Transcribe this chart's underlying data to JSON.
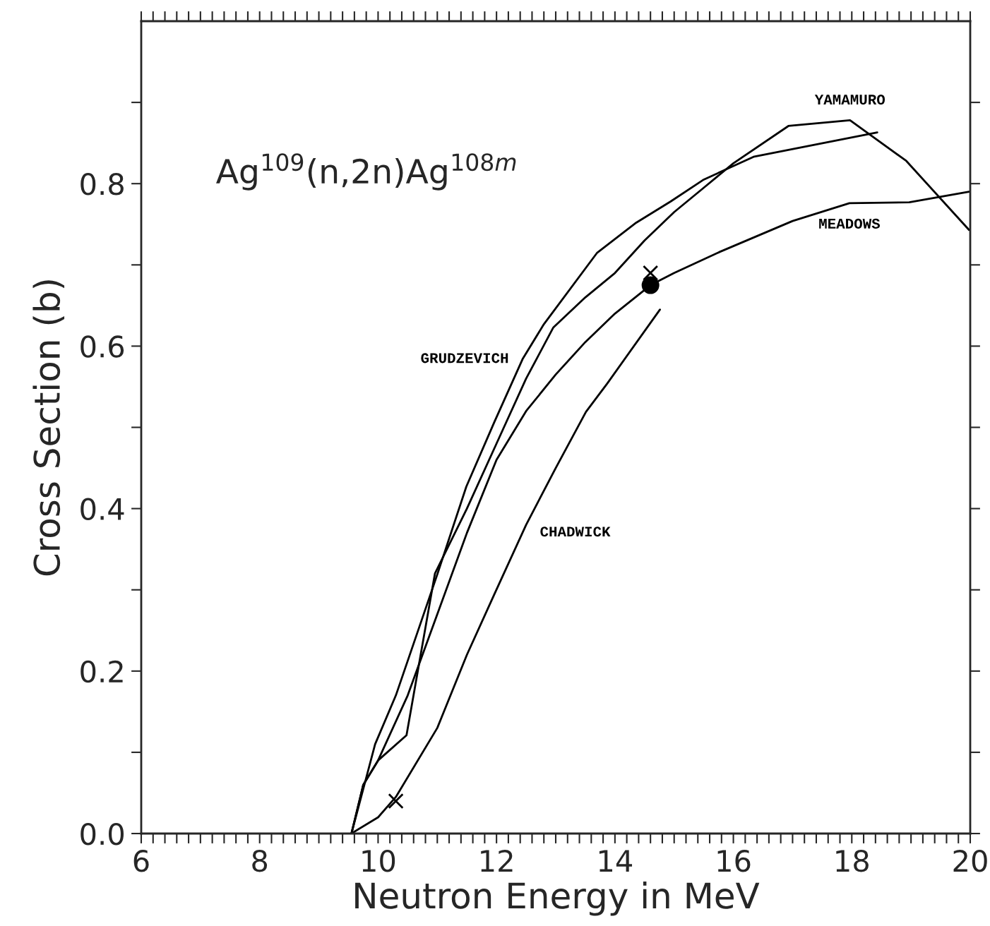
{
  "chart_data": {
    "type": "line",
    "xlabel": "Neutron Energy in MeV",
    "ylabel": "Cross Section (b)",
    "annotations": [
      "Ag$^{109}$(n,2n)Ag$^{108m}$"
    ],
    "series": [
      {
        "name": "GRUDZEVICH",
        "color": "#000000",
        "x": [
          9.55,
          9.95,
          10.3,
          11.0,
          11.49,
          11.96,
          12.44,
          12.8,
          13.7,
          14.36,
          14.94,
          15.5,
          16.34,
          18.43
        ],
        "values": [
          0.0,
          0.11,
          0.17,
          0.319,
          0.427,
          0.506,
          0.584,
          0.627,
          0.715,
          0.752,
          0.778,
          0.805,
          0.833,
          0.863
        ]
      },
      {
        "name": "YAMAMURO",
        "color": "#000000",
        "x": [
          9.55,
          9.75,
          10.0,
          10.48,
          10.96,
          11.5,
          12.0,
          12.5,
          12.96,
          13.5,
          14.0,
          14.5,
          15.0,
          15.5,
          16.0,
          16.93,
          17.97,
          18.92,
          19.98
        ],
        "values": [
          0.0,
          0.06,
          0.09,
          0.121,
          0.32,
          0.4,
          0.48,
          0.56,
          0.623,
          0.66,
          0.69,
          0.73,
          0.765,
          0.795,
          0.825,
          0.871,
          0.878,
          0.828,
          0.743
        ]
      },
      {
        "name": "MEADOWS",
        "color": "#000000",
        "x": [
          9.55,
          9.75,
          10.0,
          10.5,
          11.0,
          11.5,
          12.0,
          12.5,
          13.0,
          13.5,
          14.0,
          14.6,
          15.0,
          15.77,
          17.0,
          17.96,
          18.97,
          19.98
        ],
        "values": [
          0.0,
          0.06,
          0.09,
          0.17,
          0.27,
          0.37,
          0.46,
          0.52,
          0.565,
          0.605,
          0.64,
          0.675,
          0.69,
          0.716,
          0.754,
          0.776,
          0.777,
          0.79
        ]
      },
      {
        "name": "CHADWICK",
        "color": "#000000",
        "x": [
          9.55,
          10.0,
          10.3,
          11.0,
          11.5,
          11.96,
          12.5,
          13.0,
          13.51,
          13.87,
          14.76
        ],
        "values": [
          0.0,
          0.02,
          0.045,
          0.13,
          0.22,
          0.294,
          0.38,
          0.45,
          0.519,
          0.554,
          0.645
        ]
      },
      {
        "type": "scatter",
        "marker": "cross",
        "color": "#000000",
        "x": [
          10.3,
          14.6
        ],
        "values": [
          0.04,
          0.69
        ]
      },
      {
        "type": "scatter",
        "marker": "circle",
        "color": "#000000",
        "x": [
          14.6
        ],
        "values": [
          0.675
        ]
      }
    ],
    "xlim": [
      6,
      20
    ],
    "ylim": [
      0,
      1.0
    ],
    "xticks": [
      6,
      {
        "value": 6.2,
        "label": null
      },
      {
        "value": 6.4,
        "label": null
      },
      {
        "value": 6.6,
        "label": null
      },
      {
        "value": 6.8,
        "label": null
      },
      {
        "value": 7,
        "label": null
      },
      {
        "value": 7.2,
        "label": null
      },
      {
        "value": 7.4,
        "label": null
      },
      {
        "value": 7.6,
        "label": null
      },
      {
        "value": 7.8,
        "label": null
      },
      8,
      {
        "value": 8.2,
        "label": null
      },
      {
        "value": 8.4,
        "label": null
      },
      {
        "value": 8.6,
        "label": null
      },
      {
        "value": 8.8,
        "label": null
      },
      {
        "value": 9,
        "label": null
      },
      {
        "value": 9.2,
        "label": null
      },
      {
        "value": 9.4,
        "label": null
      },
      {
        "value": 9.6,
        "label": null
      },
      {
        "value": 9.8,
        "label": null
      },
      10,
      {
        "value": 10.2,
        "label": null
      },
      {
        "value": 10.4,
        "label": null
      },
      {
        "value": 10.6,
        "label": null
      },
      {
        "value": 10.8,
        "label": null
      },
      {
        "value": 11,
        "label": null
      },
      {
        "value": 11.2,
        "label": null
      },
      {
        "value": 11.4,
        "label": null
      },
      {
        "value": 11.6,
        "label": null
      },
      {
        "value": 11.8,
        "label": null
      },
      12,
      {
        "value": 12.2,
        "label": null
      },
      {
        "value": 12.4,
        "label": null
      },
      {
        "value": 12.6,
        "label": null
      },
      {
        "value": 12.8,
        "label": null
      },
      {
        "value": 13,
        "label": null
      },
      {
        "value": 13.2,
        "label": null
      },
      {
        "value": 13.4,
        "label": null
      },
      {
        "value": 13.6,
        "label": null
      },
      {
        "value": 13.8,
        "label": null
      },
      14,
      {
        "value": 14.2,
        "label": null
      },
      {
        "value": 14.4,
        "label": null
      },
      {
        "value": 14.6,
        "label": null
      },
      {
        "value": 14.8,
        "label": null
      },
      {
        "value": 15,
        "label": null
      },
      {
        "value": 15.2,
        "label": null
      },
      {
        "value": 15.4,
        "label": null
      },
      {
        "value": 15.6,
        "label": null
      },
      {
        "value": 15.8,
        "label": null
      },
      16,
      {
        "value": 16.2,
        "label": null
      },
      {
        "value": 16.4,
        "label": null
      },
      {
        "value": 16.6,
        "label": null
      },
      {
        "value": 16.8,
        "label": null
      },
      {
        "value": 17,
        "label": null
      },
      {
        "value": 17.2,
        "label": null
      },
      {
        "value": 17.4,
        "label": null
      },
      {
        "value": 17.6,
        "label": null
      },
      {
        "value": 17.8,
        "label": null
      },
      18,
      {
        "value": 18.2,
        "label": null
      },
      {
        "value": 18.4,
        "label": null
      },
      {
        "value": 18.6,
        "label": null
      },
      {
        "value": 18.8,
        "label": null
      },
      {
        "value": 19,
        "label": null
      },
      {
        "value": 19.2,
        "label": null
      },
      {
        "value": 19.4,
        "label": null
      },
      {
        "value": 19.6,
        "label": null
      },
      {
        "value": 19.8,
        "label": null
      },
      20
    ],
    "yticks": [
      {
        "value": 0,
        "label": "0.0"
      },
      {
        "value": 0.1,
        "label": null
      },
      0.2,
      {
        "value": 0.3,
        "label": null
      },
      0.4,
      {
        "value": 0.5,
        "label": null
      },
      0.6,
      {
        "value": 0.7,
        "label": null
      },
      0.8,
      {
        "value": 0.9,
        "label": null
      }
    ],
    "grid": false,
    "legend": false
  }
}
